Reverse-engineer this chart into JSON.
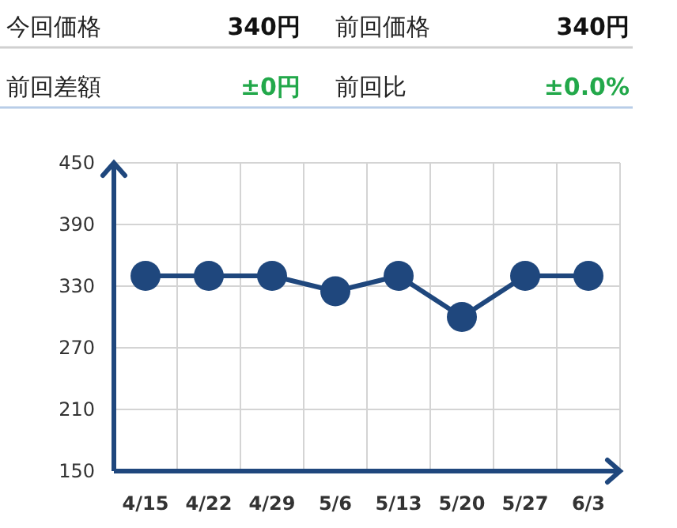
{
  "chart_data": {
    "type": "line",
    "annotations": [
      "今回価格",
      "340円",
      "前回価格",
      "340円",
      "前回差額",
      "±0円",
      "前回比",
      "±0.0%"
    ],
    "categories": [
      "4/15",
      "4/22",
      "4/29",
      "5/6",
      "5/13",
      "5/20",
      "5/27",
      "6/3"
    ],
    "series": [
      {
        "color": "#1f477d",
        "values": [
          340,
          340,
          340,
          325,
          340,
          300,
          340,
          340
        ]
      }
    ],
    "ylim": [
      150,
      450
    ],
    "yticks": [
      150,
      210,
      270,
      330,
      390,
      450
    ],
    "grid": true,
    "marker": "circle",
    "line_style": "solid"
  }
}
